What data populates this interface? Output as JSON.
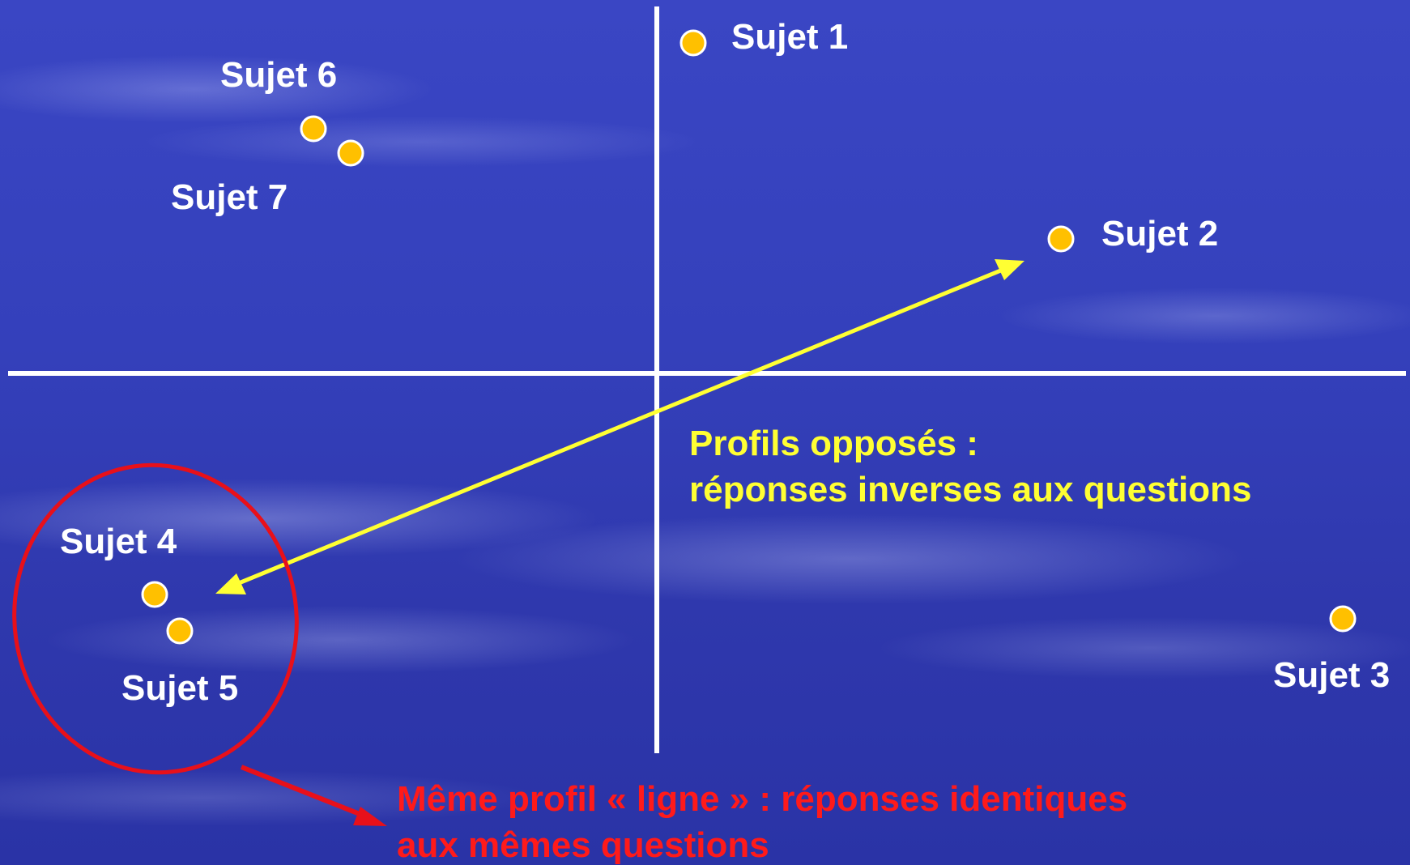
{
  "subjects": [
    {
      "id": "s1",
      "label": "Sujet 1"
    },
    {
      "id": "s2",
      "label": "Sujet 2"
    },
    {
      "id": "s3",
      "label": "Sujet 3"
    },
    {
      "id": "s4",
      "label": "Sujet 4"
    },
    {
      "id": "s5",
      "label": "Sujet 5"
    },
    {
      "id": "s6",
      "label": "Sujet 6"
    },
    {
      "id": "s7",
      "label": "Sujet 7"
    }
  ],
  "annotations": {
    "opposed_profiles": {
      "line1": "Profils opposés :",
      "line2": "réponses inverses aux questions"
    },
    "same_profile": {
      "line1": "Même profil « ligne » : réponses identiques",
      "line2": "aux mêmes questions"
    }
  },
  "colors": {
    "axes": "#ffffff",
    "point_fill": "#ffc000",
    "point_stroke": "#ffffff",
    "opposed_arrow": "#ffff33",
    "cluster_circle": "#e8101a",
    "cluster_arrow": "#e8101a"
  }
}
